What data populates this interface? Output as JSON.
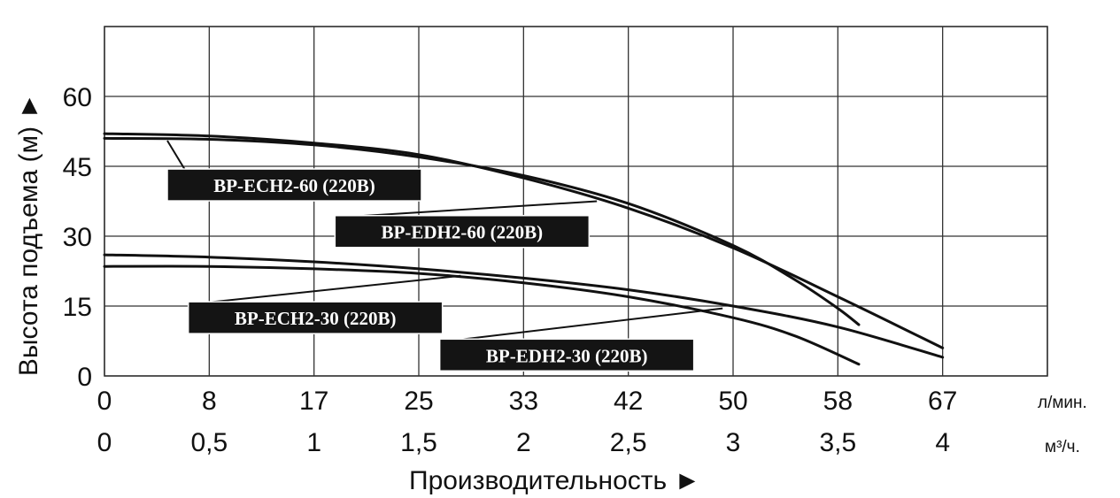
{
  "chart_data": {
    "type": "line",
    "xlabel": "Производительность ►",
    "ylabel": "Высота подъема (м) ►",
    "x_unit_primary": "л/мин.",
    "x_unit_secondary": "м³/ч.",
    "x_ticks_primary": [
      "0",
      "8",
      "17",
      "25",
      "33",
      "42",
      "50",
      "58",
      "67"
    ],
    "x_ticks_secondary": [
      "0",
      "0,5",
      "1",
      "1,5",
      "2",
      "2,5",
      "3",
      "3,5",
      "4"
    ],
    "y_ticks": [
      "0",
      "15",
      "30",
      "45",
      "60"
    ],
    "xlim": [
      0,
      4.5
    ],
    "ylim": [
      0,
      75
    ],
    "grid": true,
    "series": [
      {
        "name": "BP-ECH2-60 (220B)",
        "x": [
          0,
          0.5,
          1,
          1.5,
          2,
          2.5,
          3,
          3.3,
          3.5,
          3.6
        ],
        "y": [
          51,
          50.8,
          49.6,
          47,
          43,
          37,
          28,
          20.5,
          14.5,
          11
        ]
      },
      {
        "name": "BP-EDH2-60 (220B)",
        "x": [
          0,
          0.5,
          1,
          1.5,
          2,
          2.5,
          3,
          3.5,
          4
        ],
        "y": [
          52,
          51.5,
          50,
          47.5,
          42.5,
          36,
          27.5,
          17,
          6
        ]
      },
      {
        "name": "BP-ECH2-30 (220B)",
        "x": [
          0,
          0.5,
          1,
          1.5,
          2,
          2.5,
          3,
          3.5,
          4
        ],
        "y": [
          26,
          25.5,
          24.5,
          23,
          21,
          18.5,
          15,
          10.5,
          4
        ]
      },
      {
        "name": "BP-EDH2-30 (220B)",
        "x": [
          0,
          0.5,
          1,
          1.5,
          2,
          2.5,
          3,
          3.3,
          3.6
        ],
        "y": [
          23.5,
          23.5,
          23,
          22,
          20,
          17,
          12.5,
          8.5,
          2.5
        ]
      }
    ],
    "labels": [
      {
        "text": "BP-ECH2-60 (220B)",
        "at": [
          0.3,
          50.5
        ],
        "box": [
          0.3,
          41
        ]
      },
      {
        "text": "BP-EDH2-60 (220B)",
        "at": [
          2.35,
          37.5
        ],
        "box": [
          1.1,
          31
        ]
      },
      {
        "text": "BP-ECH2-30 (220B)",
        "at": [
          1.7,
          21.5
        ],
        "box": [
          0.4,
          12.5
        ]
      },
      {
        "text": "BP-EDH2-30 (220B)",
        "at": [
          2.95,
          14.5
        ],
        "box": [
          1.6,
          4.5
        ]
      }
    ]
  }
}
